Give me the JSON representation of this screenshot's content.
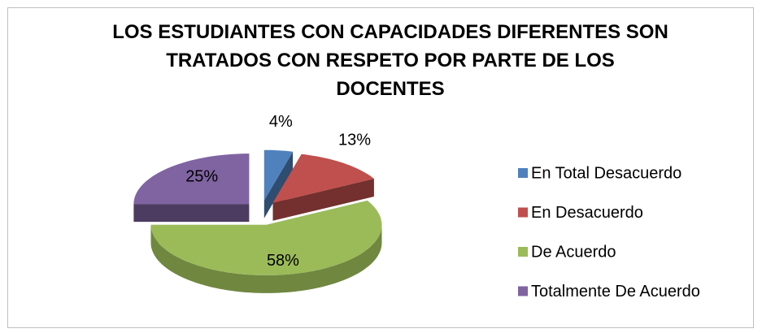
{
  "chart_data": {
    "type": "pie",
    "title": "LOS ESTUDIANTES CON CAPACIDADES DIFERENTES SON\nTRATADOS CON RESPETO  POR PARTE DE LOS\nDOCENTES",
    "categories": [
      "En Total Desacuerdo",
      "En Desacuerdo",
      "De Acuerdo",
      "Totalmente De Acuerdo"
    ],
    "values": [
      4,
      13,
      58,
      25
    ],
    "value_labels": [
      "4%",
      "13%",
      "58%",
      "25%"
    ],
    "colors": [
      "#4f81bd",
      "#c0504d",
      "#9bbb59",
      "#8064a2"
    ],
    "legend": "right"
  }
}
